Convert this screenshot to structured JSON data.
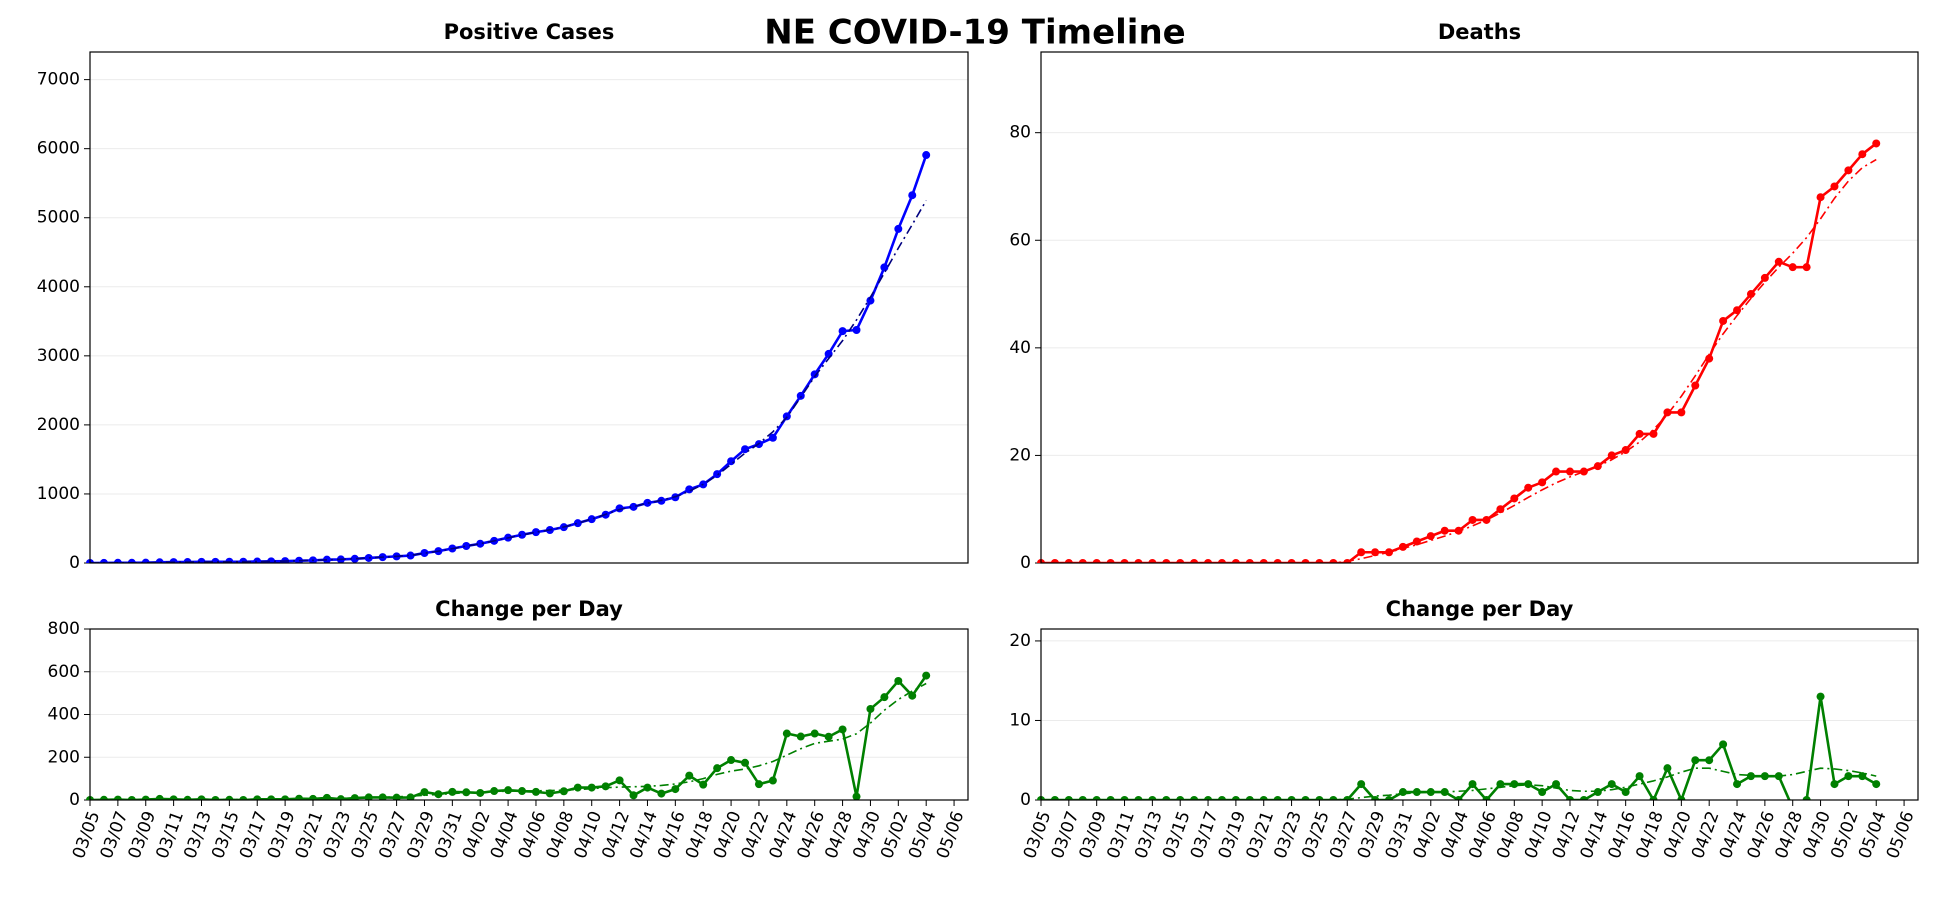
{
  "title": "NE COVID-19 Timeline",
  "chart_data": [
    {
      "type": "line",
      "title": "Positive Cases",
      "x": [
        "03/05",
        "03/06",
        "03/07",
        "03/08",
        "03/09",
        "03/10",
        "03/11",
        "03/12",
        "03/13",
        "03/14",
        "03/15",
        "03/16",
        "03/17",
        "03/18",
        "03/19",
        "03/20",
        "03/21",
        "03/22",
        "03/23",
        "03/24",
        "03/25",
        "03/26",
        "03/27",
        "03/28",
        "03/29",
        "03/30",
        "03/31",
        "04/01",
        "04/02",
        "04/03",
        "04/04",
        "04/05",
        "04/06",
        "04/07",
        "04/08",
        "04/09",
        "04/10",
        "04/11",
        "04/12",
        "04/13",
        "04/14",
        "04/15",
        "04/16",
        "04/17",
        "04/18",
        "04/19",
        "04/20",
        "04/21",
        "04/22",
        "04/23",
        "04/24",
        "04/25",
        "04/26",
        "04/27",
        "04/28",
        "04/29",
        "04/30",
        "05/01",
        "05/02",
        "05/03",
        "05/04"
      ],
      "xlim": [
        "03/05",
        "05/07"
      ],
      "ylim": [
        0,
        7400
      ],
      "yticks": [
        0,
        1000,
        2000,
        3000,
        4000,
        5000,
        6000,
        7000
      ],
      "grid": true,
      "series": [
        {
          "color": "#0000ff",
          "line": "solid",
          "values": [
            0,
            1,
            3,
            3,
            5,
            10,
            13,
            14,
            17,
            17,
            18,
            18,
            21,
            24,
            27,
            33,
            38,
            48,
            52,
            61,
            73,
            85,
            96,
            108,
            145,
            172,
            210,
            246,
            279,
            321,
            367,
            409,
            447,
            478,
            519,
            577,
            635,
            699,
            791,
            813,
            871,
            901,
            952,
            1066,
            1138,
            1287,
            1474,
            1648,
            1722,
            1813,
            2124,
            2421,
            2732,
            3028,
            3358,
            3374,
            3800,
            4281,
            4838,
            5326,
            5908
          ]
        },
        {
          "color": "#000080",
          "line": "dashdot",
          "values": [
            0,
            1,
            2,
            3,
            5,
            9,
            12,
            14,
            16,
            17,
            18,
            19,
            21,
            24,
            28,
            33,
            39,
            46,
            53,
            62,
            73,
            85,
            97,
            112,
            140,
            172,
            208,
            244,
            280,
            320,
            364,
            406,
            445,
            480,
            522,
            576,
            636,
            705,
            775,
            818,
            866,
            908,
            960,
            1040,
            1140,
            1270,
            1430,
            1590,
            1730,
            1900,
            2110,
            2400,
            2700,
            2960,
            3220,
            3520,
            3850,
            4200,
            4560,
            4900,
            5250
          ]
        }
      ]
    },
    {
      "type": "line",
      "title": "Deaths",
      "x": [
        "03/05",
        "03/06",
        "03/07",
        "03/08",
        "03/09",
        "03/10",
        "03/11",
        "03/12",
        "03/13",
        "03/14",
        "03/15",
        "03/16",
        "03/17",
        "03/18",
        "03/19",
        "03/20",
        "03/21",
        "03/22",
        "03/23",
        "03/24",
        "03/25",
        "03/26",
        "03/27",
        "03/28",
        "03/29",
        "03/30",
        "03/31",
        "04/01",
        "04/02",
        "04/03",
        "04/04",
        "04/05",
        "04/06",
        "04/07",
        "04/08",
        "04/09",
        "04/10",
        "04/11",
        "04/12",
        "04/13",
        "04/14",
        "04/15",
        "04/16",
        "04/17",
        "04/18",
        "04/19",
        "04/20",
        "04/21",
        "04/22",
        "04/23",
        "04/24",
        "04/25",
        "04/26",
        "04/27",
        "04/28",
        "04/29",
        "04/30",
        "05/01",
        "05/02",
        "05/03",
        "05/04"
      ],
      "xlim": [
        "03/05",
        "05/07"
      ],
      "ylim": [
        0,
        95
      ],
      "yticks": [
        0,
        20,
        40,
        60,
        80
      ],
      "grid": true,
      "series": [
        {
          "color": "#ff0000",
          "line": "solid",
          "values": [
            0,
            0,
            0,
            0,
            0,
            0,
            0,
            0,
            0,
            0,
            0,
            0,
            0,
            0,
            0,
            0,
            0,
            0,
            0,
            0,
            0,
            0,
            0,
            2,
            2,
            2,
            3,
            4,
            5,
            6,
            6,
            8,
            8,
            10,
            12,
            14,
            15,
            17,
            17,
            17,
            18,
            20,
            21,
            24,
            24,
            28,
            28,
            33,
            38,
            45,
            47,
            50,
            53,
            56,
            55,
            55,
            68,
            70,
            73,
            76,
            78
          ]
        },
        {
          "color": "#ff0000",
          "line": "dashdot",
          "values": [
            0,
            0,
            0,
            0,
            0,
            0,
            0,
            0,
            0,
            0,
            0,
            0,
            0,
            0,
            0,
            0,
            0,
            0,
            0,
            0,
            0,
            0,
            0.3,
            0.8,
            1.4,
            2,
            2.7,
            3.4,
            4.2,
            5,
            5.9,
            6.9,
            8,
            9.3,
            10.7,
            12.2,
            13.6,
            14.9,
            16,
            17,
            18,
            19.2,
            20.7,
            22.5,
            24.8,
            27.6,
            31,
            34.8,
            38.8,
            42.6,
            46,
            49.2,
            52.2,
            55,
            57.6,
            60.5,
            64,
            67.8,
            71,
            73.5,
            75
          ]
        }
      ]
    },
    {
      "type": "line",
      "title": "Change per Day",
      "x": [
        "03/05",
        "03/06",
        "03/07",
        "03/08",
        "03/09",
        "03/10",
        "03/11",
        "03/12",
        "03/13",
        "03/14",
        "03/15",
        "03/16",
        "03/17",
        "03/18",
        "03/19",
        "03/20",
        "03/21",
        "03/22",
        "03/23",
        "03/24",
        "03/25",
        "03/26",
        "03/27",
        "03/28",
        "03/29",
        "03/30",
        "03/31",
        "04/01",
        "04/02",
        "04/03",
        "04/04",
        "04/05",
        "04/06",
        "04/07",
        "04/08",
        "04/09",
        "04/10",
        "04/11",
        "04/12",
        "04/13",
        "04/14",
        "04/15",
        "04/16",
        "04/17",
        "04/18",
        "04/19",
        "04/20",
        "04/21",
        "04/22",
        "04/23",
        "04/24",
        "04/25",
        "04/26",
        "04/27",
        "04/28",
        "04/29",
        "04/30",
        "05/01",
        "05/02",
        "05/03",
        "05/04"
      ],
      "xlim": [
        "03/05",
        "05/07"
      ],
      "xticks": [
        "03/05",
        "03/07",
        "03/09",
        "03/11",
        "03/13",
        "03/15",
        "03/17",
        "03/19",
        "03/21",
        "03/23",
        "03/25",
        "03/27",
        "03/29",
        "03/31",
        "04/02",
        "04/04",
        "04/06",
        "04/08",
        "04/10",
        "04/12",
        "04/14",
        "04/16",
        "04/18",
        "04/20",
        "04/22",
        "04/24",
        "04/26",
        "04/28",
        "04/30",
        "05/02",
        "05/04",
        "05/06"
      ],
      "ylim": [
        0,
        800
      ],
      "yticks": [
        0,
        200,
        400,
        600,
        800
      ],
      "grid": true,
      "series": [
        {
          "color": "#008000",
          "line": "solid",
          "values": [
            0,
            1,
            2,
            0,
            2,
            5,
            3,
            1,
            3,
            0,
            1,
            0,
            3,
            3,
            3,
            6,
            5,
            10,
            4,
            9,
            12,
            12,
            11,
            12,
            37,
            27,
            38,
            36,
            33,
            42,
            46,
            42,
            38,
            31,
            41,
            58,
            58,
            64,
            92,
            22,
            58,
            30,
            51,
            114,
            72,
            149,
            187,
            174,
            74,
            91,
            311,
            297,
            311,
            296,
            330,
            16,
            426,
            481,
            557,
            488,
            582
          ]
        },
        {
          "color": "#008000",
          "line": "dashdot",
          "values": [
            0,
            0,
            1,
            1,
            2,
            2,
            2,
            2,
            2,
            2,
            2,
            2,
            3,
            3,
            4,
            5,
            6,
            7,
            8,
            9,
            10,
            12,
            15,
            18,
            22,
            26,
            30,
            34,
            37,
            40,
            41,
            42,
            43,
            44,
            46,
            49,
            53,
            58,
            60,
            62,
            64,
            68,
            75,
            85,
            100,
            120,
            135,
            145,
            160,
            180,
            210,
            240,
            265,
            275,
            285,
            310,
            360,
            420,
            470,
            510,
            545
          ]
        }
      ]
    },
    {
      "type": "line",
      "title": "Change per Day",
      "x": [
        "03/05",
        "03/06",
        "03/07",
        "03/08",
        "03/09",
        "03/10",
        "03/11",
        "03/12",
        "03/13",
        "03/14",
        "03/15",
        "03/16",
        "03/17",
        "03/18",
        "03/19",
        "03/20",
        "03/21",
        "03/22",
        "03/23",
        "03/24",
        "03/25",
        "03/26",
        "03/27",
        "03/28",
        "03/29",
        "03/30",
        "03/31",
        "04/01",
        "04/02",
        "04/03",
        "04/04",
        "04/05",
        "04/06",
        "04/07",
        "04/08",
        "04/09",
        "04/10",
        "04/11",
        "04/12",
        "04/13",
        "04/14",
        "04/15",
        "04/16",
        "04/17",
        "04/18",
        "04/19",
        "04/20",
        "04/21",
        "04/22",
        "04/23",
        "04/24",
        "04/25",
        "04/26",
        "04/27",
        "04/28",
        "04/29",
        "04/30",
        "05/01",
        "05/02",
        "05/03",
        "05/04"
      ],
      "xlim": [
        "03/05",
        "05/07"
      ],
      "xticks": [
        "03/05",
        "03/07",
        "03/09",
        "03/11",
        "03/13",
        "03/15",
        "03/17",
        "03/19",
        "03/21",
        "03/23",
        "03/25",
        "03/27",
        "03/29",
        "03/31",
        "04/02",
        "04/04",
        "04/06",
        "04/08",
        "04/10",
        "04/12",
        "04/14",
        "04/16",
        "04/18",
        "04/20",
        "04/22",
        "04/24",
        "04/26",
        "04/28",
        "04/30",
        "05/02",
        "05/04",
        "05/06"
      ],
      "ylim": [
        0,
        21.5
      ],
      "yticks": [
        0,
        10,
        20
      ],
      "grid": true,
      "series": [
        {
          "color": "#008000",
          "line": "solid",
          "values": [
            0,
            0,
            0,
            0,
            0,
            0,
            0,
            0,
            0,
            0,
            0,
            0,
            0,
            0,
            0,
            0,
            0,
            0,
            0,
            0,
            0,
            0,
            0,
            2,
            0,
            0,
            1,
            1,
            1,
            1,
            0,
            2,
            0,
            2,
            2,
            2,
            1,
            2,
            0,
            0,
            1,
            2,
            1,
            3,
            0,
            4,
            0,
            5,
            5,
            7,
            2,
            3,
            3,
            3,
            -1,
            0,
            13,
            2,
            3,
            3,
            2
          ]
        },
        {
          "color": "#008000",
          "line": "dashdot",
          "values": [
            0,
            0,
            0,
            0,
            0,
            0,
            0,
            0,
            0,
            0,
            0,
            0,
            0,
            0,
            0,
            0,
            0,
            0,
            0,
            0,
            0,
            0,
            0.1,
            0.3,
            0.5,
            0.6,
            0.8,
            0.9,
            1,
            1,
            1.1,
            1.2,
            1.4,
            1.6,
            1.8,
            1.9,
            1.8,
            1.5,
            1.2,
            1.1,
            1.1,
            1.3,
            1.6,
            2,
            2.4,
            2.9,
            3.5,
            4,
            4,
            3.6,
            3.2,
            3.1,
            3,
            3,
            3.2,
            3.6,
            4,
            3.9,
            3.7,
            3.4,
            3
          ]
        }
      ]
    }
  ]
}
